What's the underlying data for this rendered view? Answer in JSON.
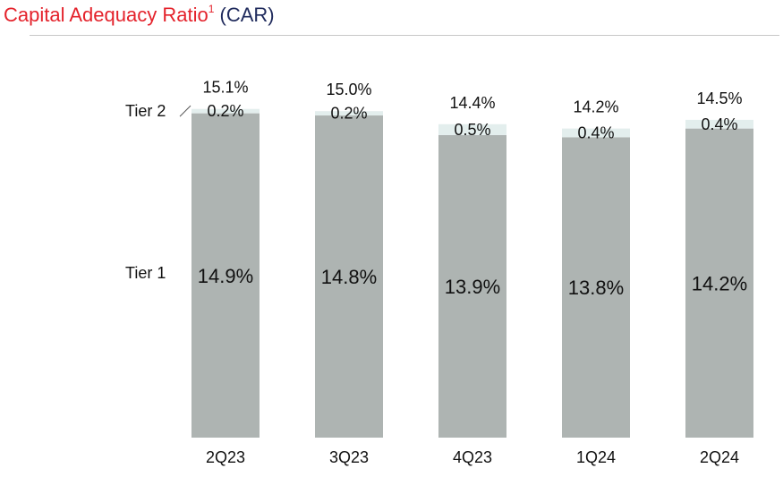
{
  "title": {
    "main": "Capital Adequacy Ratio",
    "superscript": "1",
    "suffix": "(CAR)"
  },
  "colors": {
    "title_red": "#e4222b",
    "title_navy": "#1f2a5c",
    "tier1": "#aeb4b2",
    "tier2": "#e3eeed"
  },
  "chart_data": {
    "type": "bar",
    "stacked": true,
    "categories": [
      "2Q23",
      "3Q23",
      "4Q23",
      "1Q24",
      "2Q24"
    ],
    "series": [
      {
        "name": "Tier 1",
        "values": [
          14.9,
          14.8,
          13.9,
          13.8,
          14.2
        ],
        "labels": [
          "14.9%",
          "14.8%",
          "13.9%",
          "13.8%",
          "14.2%"
        ]
      },
      {
        "name": "Tier 2",
        "values": [
          0.2,
          0.2,
          0.5,
          0.4,
          0.4
        ],
        "labels": [
          "0.2%",
          "0.2%",
          "0.5%",
          "0.4%",
          "0.4%"
        ]
      }
    ],
    "totals": [
      15.1,
      15.0,
      14.4,
      14.2,
      14.5
    ],
    "total_labels": [
      "15.1%",
      "15.0%",
      "14.4%",
      "14.2%",
      "14.5%"
    ],
    "ylim": [
      0,
      15.5
    ],
    "grid": false,
    "legend": "left"
  }
}
